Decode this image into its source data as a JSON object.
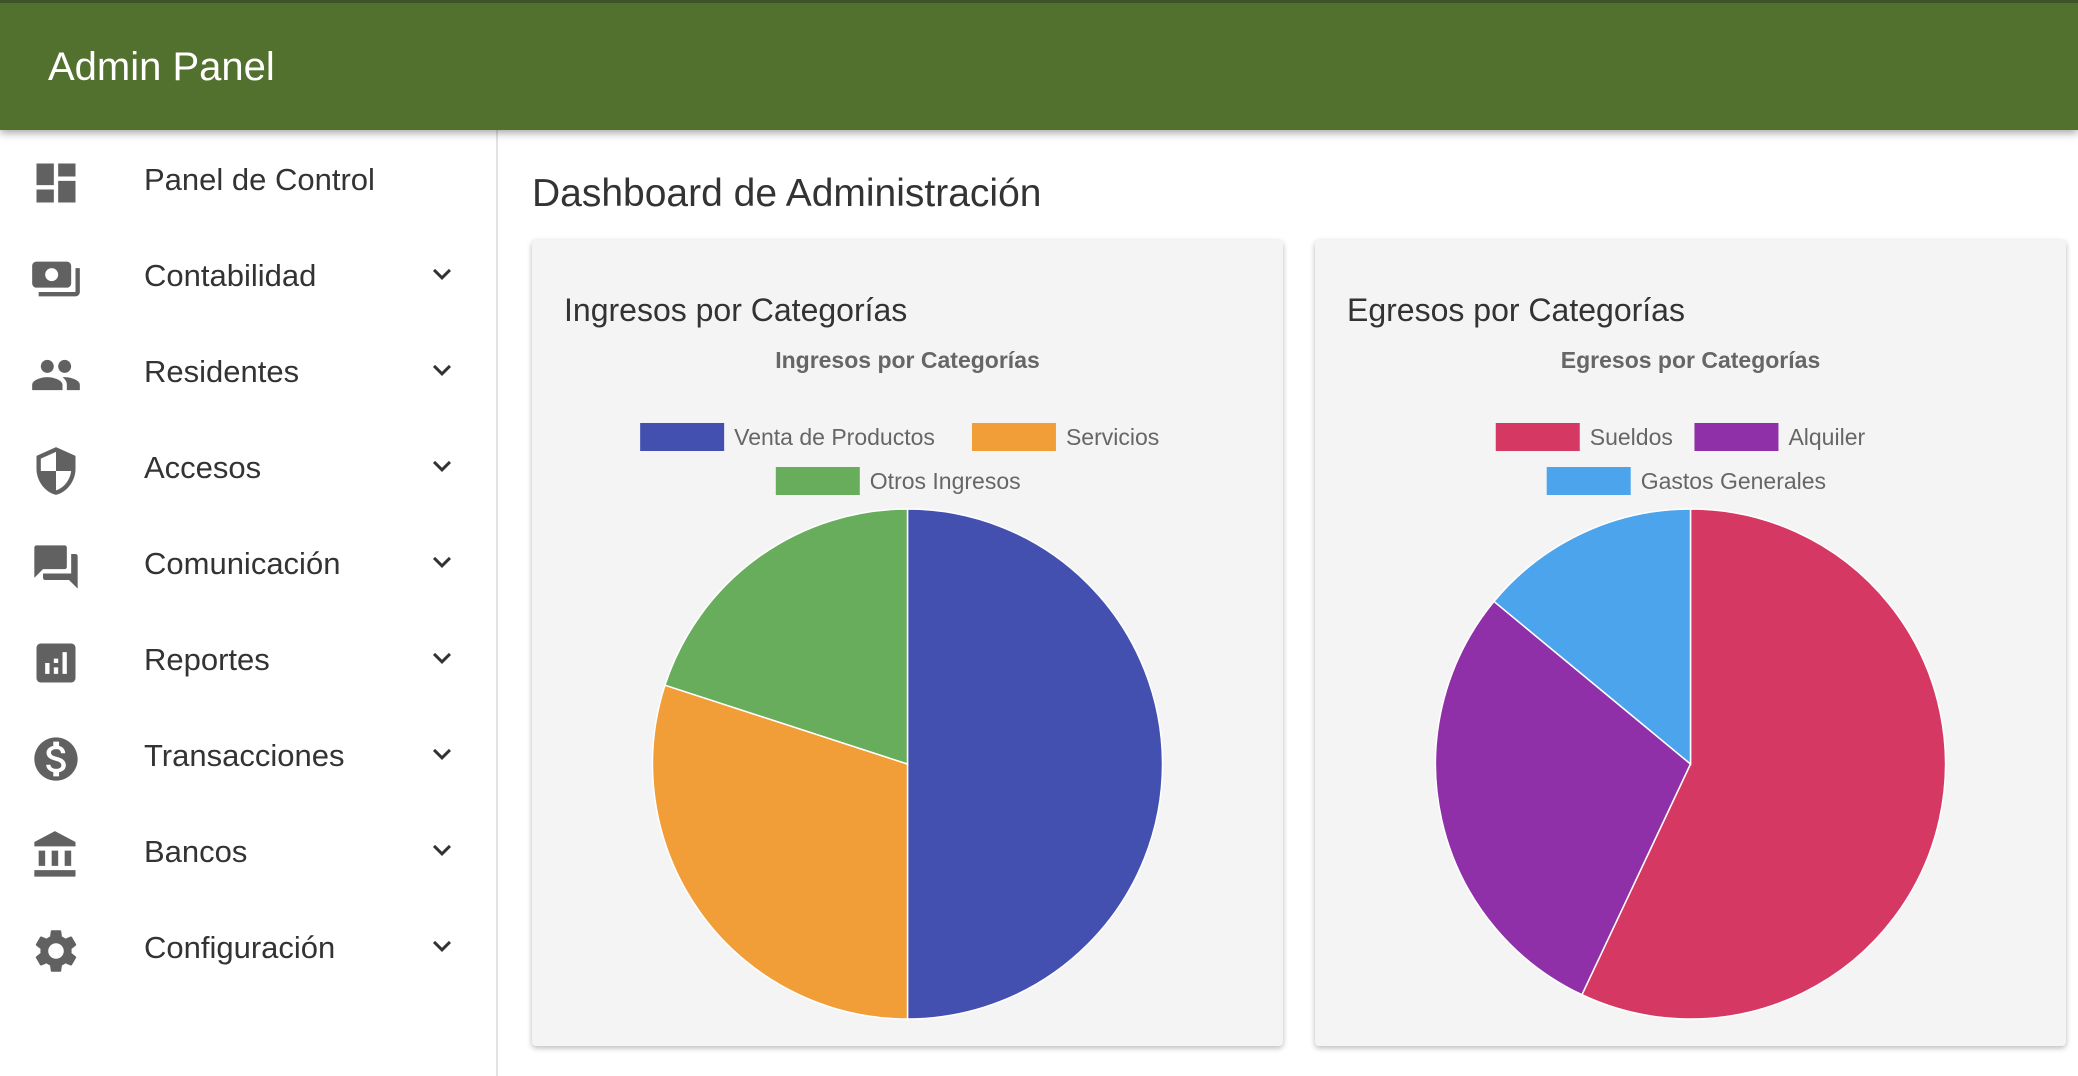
{
  "app": {
    "title": "Admin Panel"
  },
  "colors": {
    "header_bg": "#52702e",
    "icon_gray": "#616161",
    "card_bg": "#f4f4f4"
  },
  "sidebar": {
    "items": [
      {
        "label": "Panel de Control",
        "icon": "dashboard-icon",
        "expandable": false
      },
      {
        "label": "Contabilidad",
        "icon": "money-icon",
        "expandable": true
      },
      {
        "label": "Residentes",
        "icon": "people-icon",
        "expandable": true
      },
      {
        "label": "Accesos",
        "icon": "shield-icon",
        "expandable": true
      },
      {
        "label": "Comunicación",
        "icon": "chat-icon",
        "expandable": true
      },
      {
        "label": "Reportes",
        "icon": "bar-chart-icon",
        "expandable": true
      },
      {
        "label": "Transacciones",
        "icon": "dollar-icon",
        "expandable": true
      },
      {
        "label": "Bancos",
        "icon": "bank-icon",
        "expandable": true
      },
      {
        "label": "Configuración",
        "icon": "gear-icon",
        "expandable": true
      }
    ]
  },
  "main": {
    "page_title": "Dashboard de Administración",
    "cards": [
      {
        "title": "Ingresos por Categorías"
      },
      {
        "title": "Egresos por Categorías"
      }
    ]
  },
  "chart_data": [
    {
      "type": "pie",
      "title": "Ingresos por Categorías",
      "legend_position": "top",
      "categories": [
        "Venta de Productos",
        "Servicios",
        "Otros Ingresos"
      ],
      "values": [
        50,
        30,
        20
      ],
      "colors": [
        "#4350af",
        "#f19e39",
        "#67ad5b"
      ]
    },
    {
      "type": "pie",
      "title": "Egresos por Categorías",
      "legend_position": "top",
      "categories": [
        "Sueldos",
        "Alquiler",
        "Gastos Generales"
      ],
      "values": [
        57,
        29,
        14
      ],
      "colors": [
        "#d63864",
        "#8f30a9",
        "#4ca4ed"
      ]
    }
  ]
}
